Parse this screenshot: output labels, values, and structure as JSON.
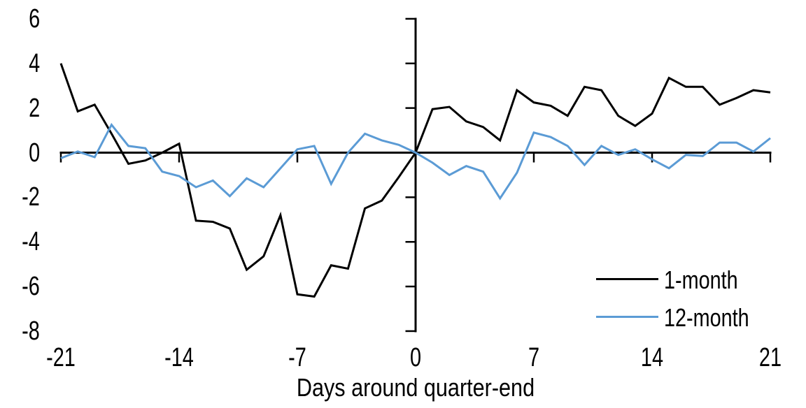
{
  "chart_data": {
    "type": "line",
    "title": "",
    "xlabel": "Days around quarter-end",
    "ylabel": "",
    "grid": false,
    "legend_position": "lower right",
    "axis_color": "#000000",
    "background_color": "#ffffff",
    "xlim": [
      -21,
      21
    ],
    "ylim": [
      -8,
      6
    ],
    "x_tick_values": [
      -21,
      -14,
      -7,
      0,
      7,
      14,
      21
    ],
    "x_tick_labels": [
      "-21",
      "-14",
      "-7",
      "0",
      "7",
      "14",
      "21"
    ],
    "y_tick_values": [
      6,
      4,
      2,
      0,
      -2,
      -4,
      -6,
      -8
    ],
    "y_tick_labels": [
      "6",
      "4",
      "2",
      "0",
      "-2",
      "-4",
      "-6",
      "-8"
    ],
    "x": [
      -21,
      -20,
      -19,
      -18,
      -17,
      -16,
      -15,
      -14,
      -13,
      -12,
      -11,
      -10,
      -9,
      -8,
      -7,
      -6,
      -5,
      -4,
      -3,
      -2,
      -1,
      0,
      1,
      2,
      3,
      4,
      5,
      6,
      7,
      8,
      9,
      10,
      11,
      12,
      13,
      14,
      15,
      16,
      17,
      18,
      19,
      20,
      21
    ],
    "series": [
      {
        "name": "1-month",
        "color": "#000000",
        "values": [
          4.0,
          1.85,
          2.15,
          0.85,
          -0.5,
          -0.35,
          0.0,
          0.4,
          -3.05,
          -3.1,
          -3.4,
          -5.25,
          -4.65,
          -2.8,
          -6.35,
          -6.45,
          -5.05,
          -5.2,
          -2.5,
          -2.15,
          -1.1,
          0.0,
          1.95,
          2.05,
          1.4,
          1.15,
          0.55,
          2.8,
          2.25,
          2.1,
          1.65,
          2.95,
          2.8,
          1.65,
          1.2,
          1.75,
          3.35,
          2.95,
          2.95,
          2.15,
          2.45,
          2.8,
          2.7
        ]
      },
      {
        "name": "12-month",
        "color": "#5B9BD5",
        "values": [
          -0.25,
          0.05,
          -0.2,
          1.25,
          0.3,
          0.2,
          -0.85,
          -1.05,
          -1.55,
          -1.25,
          -1.95,
          -1.15,
          -1.55,
          -0.7,
          0.15,
          0.3,
          -1.4,
          0.0,
          0.85,
          0.55,
          0.35,
          0.0,
          -0.45,
          -1.0,
          -0.6,
          -0.85,
          -2.05,
          -0.9,
          0.9,
          0.7,
          0.3,
          -0.55,
          0.3,
          -0.1,
          0.15,
          -0.3,
          -0.7,
          -0.1,
          -0.15,
          0.45,
          0.45,
          0.05,
          0.65
        ]
      }
    ]
  }
}
